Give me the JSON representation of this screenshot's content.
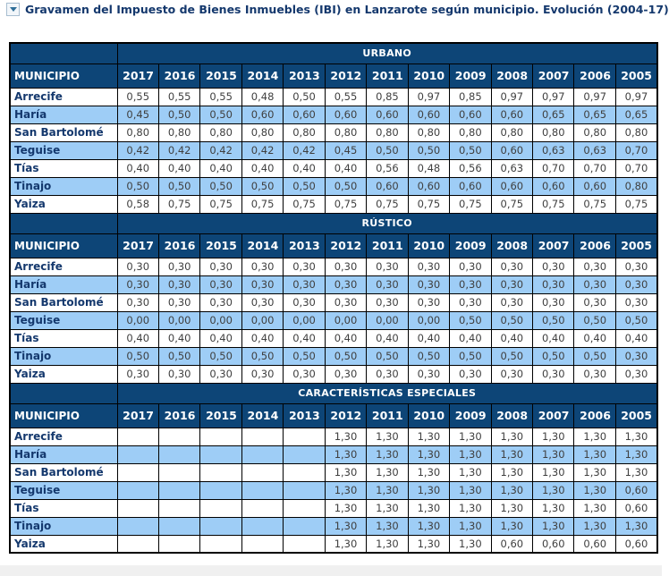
{
  "page": {
    "title": "Gravamen del Impuesto de Bienes Inmuebles (IBI) en Lanzarote según municipio. Evolución (2004-17)"
  },
  "colors": {
    "header_bg": "#0d4577",
    "row_alt_bg": "#9ecdf6",
    "row_bg": "#ffffff",
    "title_color": "#14386d",
    "header_text": "#ffffff",
    "cell_text": "#3f3f3f",
    "border": "#000000",
    "collapse_arrow": "#2f6f99"
  },
  "icons": {
    "collapse_icon": "triangle-down"
  },
  "chart_data": {
    "type": "table",
    "title": "Gravamen del Impuesto de Bienes Inmuebles (IBI) en Lanzarote según municipio. Evolución (2004-17)",
    "row_header": "MUNICIPIO",
    "columns": [
      "2017",
      "2016",
      "2015",
      "2014",
      "2013",
      "2012",
      "2011",
      "2010",
      "2009",
      "2008",
      "2007",
      "2006",
      "2005"
    ],
    "sections": [
      {
        "name": "URBANO",
        "rows": [
          {
            "municipio": "Arrecife",
            "values": [
              "0,55",
              "0,55",
              "0,55",
              "0,48",
              "0,50",
              "0,55",
              "0,85",
              "0,97",
              "0,85",
              "0,97",
              "0,97",
              "0,97",
              "0,97"
            ]
          },
          {
            "municipio": "Haría",
            "values": [
              "0,45",
              "0,50",
              "0,50",
              "0,60",
              "0,60",
              "0,60",
              "0,60",
              "0,60",
              "0,60",
              "0,60",
              "0,65",
              "0,65",
              "0,65"
            ]
          },
          {
            "municipio": "San Bartolomé",
            "values": [
              "0,80",
              "0,80",
              "0,80",
              "0,80",
              "0,80",
              "0,80",
              "0,80",
              "0,80",
              "0,80",
              "0,80",
              "0,80",
              "0,80",
              "0,80"
            ]
          },
          {
            "municipio": "Teguise",
            "values": [
              "0,42",
              "0,42",
              "0,42",
              "0,42",
              "0,42",
              "0,45",
              "0,50",
              "0,50",
              "0,50",
              "0,60",
              "0,63",
              "0,63",
              "0,70"
            ]
          },
          {
            "municipio": "Tías",
            "values": [
              "0,40",
              "0,40",
              "0,40",
              "0,40",
              "0,40",
              "0,40",
              "0,56",
              "0,48",
              "0,56",
              "0,63",
              "0,70",
              "0,70",
              "0,70"
            ]
          },
          {
            "municipio": "Tinajo",
            "values": [
              "0,50",
              "0,50",
              "0,50",
              "0,50",
              "0,50",
              "0,50",
              "0,60",
              "0,60",
              "0,60",
              "0,60",
              "0,60",
              "0,60",
              "0,80"
            ]
          },
          {
            "municipio": "Yaiza",
            "values": [
              "0,58",
              "0,75",
              "0,75",
              "0,75",
              "0,75",
              "0,75",
              "0,75",
              "0,75",
              "0,75",
              "0,75",
              "0,75",
              "0,75",
              "0,75"
            ]
          }
        ]
      },
      {
        "name": "RÚSTICO",
        "rows": [
          {
            "municipio": "Arrecife",
            "values": [
              "0,30",
              "0,30",
              "0,30",
              "0,30",
              "0,30",
              "0,30",
              "0,30",
              "0,30",
              "0,30",
              "0,30",
              "0,30",
              "0,30",
              "0,30"
            ]
          },
          {
            "municipio": "Haría",
            "values": [
              "0,30",
              "0,30",
              "0,30",
              "0,30",
              "0,30",
              "0,30",
              "0,30",
              "0,30",
              "0,30",
              "0,30",
              "0,30",
              "0,30",
              "0,30"
            ]
          },
          {
            "municipio": "San Bartolomé",
            "values": [
              "0,30",
              "0,30",
              "0,30",
              "0,30",
              "0,30",
              "0,30",
              "0,30",
              "0,30",
              "0,30",
              "0,30",
              "0,30",
              "0,30",
              "0,30"
            ]
          },
          {
            "municipio": "Teguise",
            "values": [
              "0,00",
              "0,00",
              "0,00",
              "0,00",
              "0,00",
              "0,00",
              "0,00",
              "0,00",
              "0,50",
              "0,50",
              "0,50",
              "0,50",
              "0,50"
            ]
          },
          {
            "municipio": "Tías",
            "values": [
              "0,40",
              "0,40",
              "0,40",
              "0,40",
              "0,40",
              "0,40",
              "0,40",
              "0,40",
              "0,40",
              "0,40",
              "0,40",
              "0,40",
              "0,40"
            ]
          },
          {
            "municipio": "Tinajo",
            "values": [
              "0,50",
              "0,50",
              "0,50",
              "0,50",
              "0,50",
              "0,50",
              "0,50",
              "0,50",
              "0,50",
              "0,50",
              "0,50",
              "0,50",
              "0,30"
            ]
          },
          {
            "municipio": "Yaiza",
            "values": [
              "0,30",
              "0,30",
              "0,30",
              "0,30",
              "0,30",
              "0,30",
              "0,30",
              "0,30",
              "0,30",
              "0,30",
              "0,30",
              "0,30",
              "0,30"
            ]
          }
        ]
      },
      {
        "name": "CARACTERÍSTICAS ESPECIALES",
        "rows": [
          {
            "municipio": "Arrecife",
            "values": [
              "",
              "",
              "",
              "",
              "",
              "1,30",
              "1,30",
              "1,30",
              "1,30",
              "1,30",
              "1,30",
              "1,30",
              "1,30"
            ]
          },
          {
            "municipio": "Haría",
            "values": [
              "",
              "",
              "",
              "",
              "",
              "1,30",
              "1,30",
              "1,30",
              "1,30",
              "1,30",
              "1,30",
              "1,30",
              "1,30"
            ]
          },
          {
            "municipio": "San Bartolomé",
            "values": [
              "",
              "",
              "",
              "",
              "",
              "1,30",
              "1,30",
              "1,30",
              "1,30",
              "1,30",
              "1,30",
              "1,30",
              "1,30"
            ]
          },
          {
            "municipio": "Teguise",
            "values": [
              "",
              "",
              "",
              "",
              "",
              "1,30",
              "1,30",
              "1,30",
              "1,30",
              "1,30",
              "1,30",
              "1,30",
              "0,60"
            ]
          },
          {
            "municipio": "Tías",
            "values": [
              "",
              "",
              "",
              "",
              "",
              "1,30",
              "1,30",
              "1,30",
              "1,30",
              "1,30",
              "1,30",
              "1,30",
              "0,60"
            ]
          },
          {
            "municipio": "Tinajo",
            "values": [
              "",
              "",
              "",
              "",
              "",
              "1,30",
              "1,30",
              "1,30",
              "1,30",
              "1,30",
              "1,30",
              "1,30",
              "1,30"
            ]
          },
          {
            "municipio": "Yaiza",
            "values": [
              "",
              "",
              "",
              "",
              "",
              "1,30",
              "1,30",
              "1,30",
              "1,30",
              "0,60",
              "0,60",
              "0,60",
              "0,60"
            ]
          }
        ]
      }
    ]
  }
}
